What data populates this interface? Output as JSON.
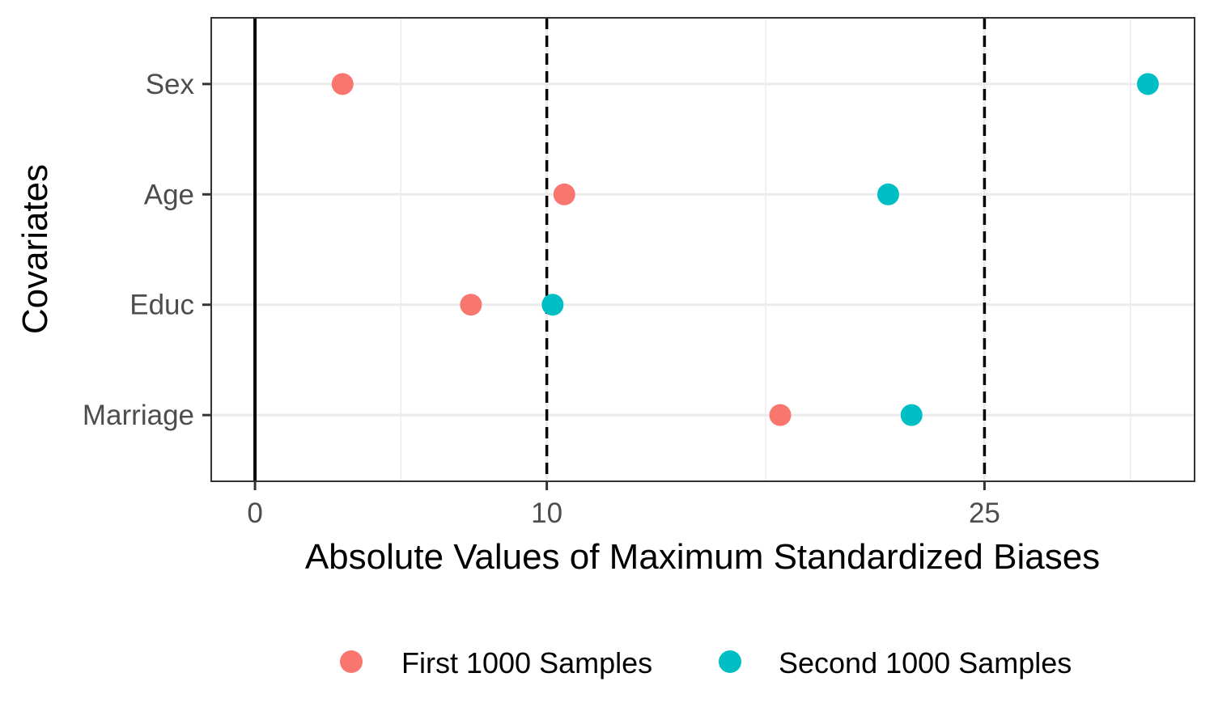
{
  "chart_data": {
    "type": "scatter",
    "xlabel": "Absolute Values of Maximum Standardized Biases",
    "ylabel": "Covariates",
    "xlim": [
      -1.5,
      32.2
    ],
    "x_ticks": [
      {
        "value": 0,
        "label": "0"
      },
      {
        "value": 10,
        "label": "10"
      },
      {
        "value": 25,
        "label": "25"
      }
    ],
    "x_minor_gridlines": [
      5,
      17.5,
      30
    ],
    "categories": [
      "Sex",
      "Age",
      "Educ",
      "Marriage"
    ],
    "reference_lines": [
      {
        "value": 0,
        "style": "solid"
      },
      {
        "value": 10,
        "style": "dashed"
      },
      {
        "value": 25,
        "style": "dashed"
      }
    ],
    "series": [
      {
        "name": "First 1000 Samples",
        "color": "#F8766D",
        "values": [
          3.0,
          10.6,
          7.4,
          18.0
        ]
      },
      {
        "name": "Second 1000 Samples",
        "color": "#00BFC4",
        "values": [
          30.6,
          21.7,
          10.2,
          22.5
        ]
      }
    ],
    "legend_position": "bottom",
    "grid": true
  }
}
